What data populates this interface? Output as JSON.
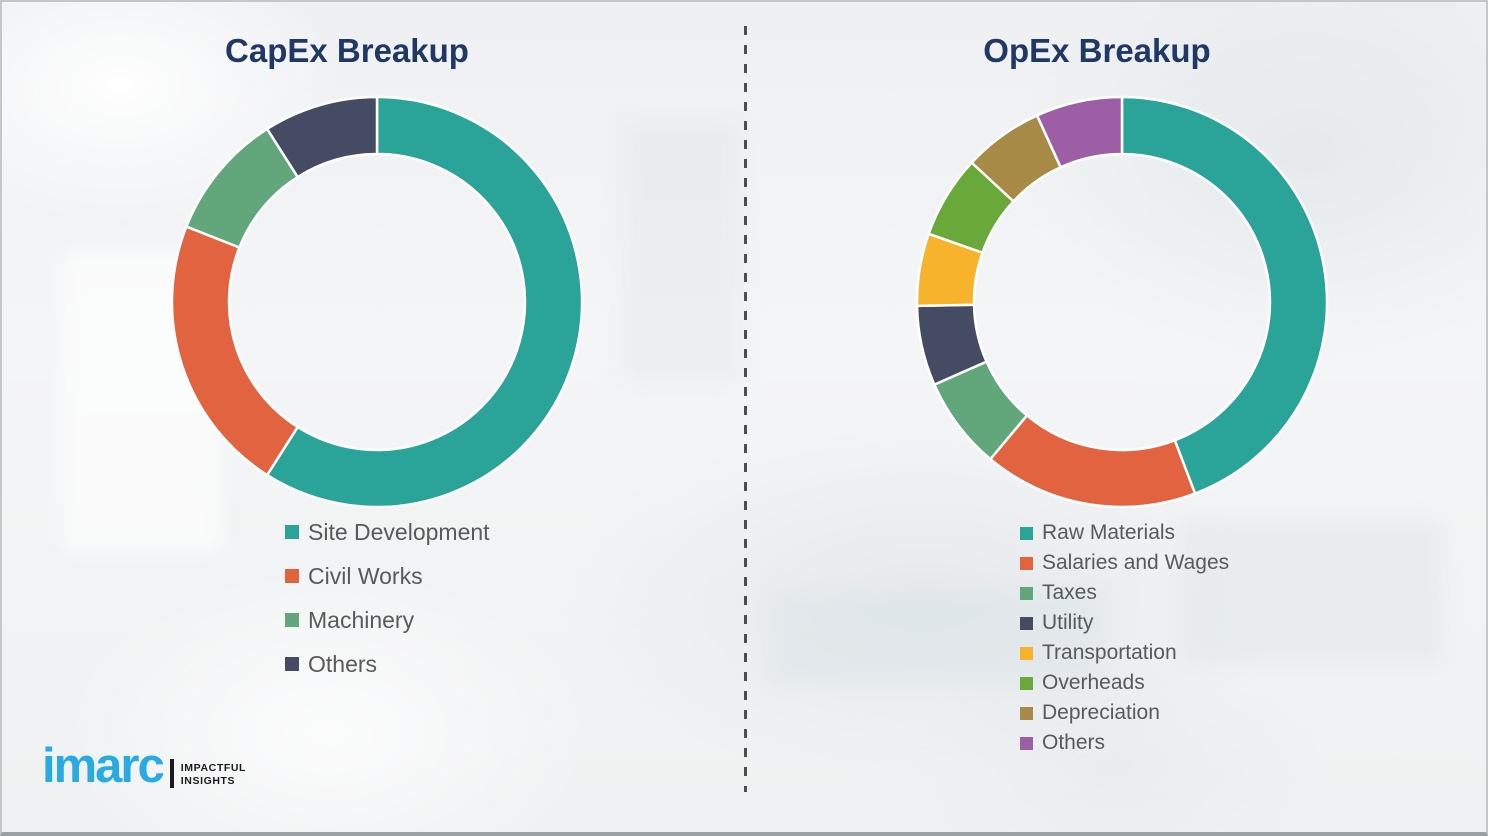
{
  "theme": {
    "title_color": "#1f3864",
    "legend_text_color": "#595959",
    "divider_color": "#4d4d4d",
    "background_color": "#f2f3f5",
    "segment_gap_color": "#ffffff"
  },
  "chart_data": [
    {
      "type": "pie",
      "subtype": "donut",
      "title": "CapEx Breakup",
      "labels": [
        "Site Development",
        "Civil Works",
        "Machinery",
        "Others"
      ],
      "values": [
        59,
        22,
        10,
        9
      ],
      "unit": "percent",
      "colors": [
        "#2aa398",
        "#e2633f",
        "#61a77b",
        "#454b63"
      ],
      "start_angle_deg": 0,
      "direction": "clockwise",
      "donut_hole_ratio": 0.72,
      "legend_position": "below-left",
      "data_labels_shown": false
    },
    {
      "type": "pie",
      "subtype": "donut",
      "title": "OpEx Breakup",
      "labels": [
        "Raw Materials",
        "Salaries and Wages",
        "Taxes",
        "Utility",
        "Transportation",
        "Overheads",
        "Depreciation",
        "Others"
      ],
      "values": [
        44.2,
        16.9,
        7.3,
        6.3,
        5.7,
        6.5,
        6.3,
        6.8
      ],
      "unit": "percent",
      "colors": [
        "#2aa398",
        "#e2633f",
        "#61a77b",
        "#454b63",
        "#f7b32b",
        "#68a93a",
        "#a68a46",
        "#9c5fa5"
      ],
      "start_angle_deg": 0,
      "direction": "clockwise",
      "donut_hole_ratio": 0.72,
      "legend_position": "below-left",
      "data_labels_shown": false
    }
  ],
  "logo": {
    "brand": "imarc",
    "brand_color": "#29abe2",
    "tagline_line1": "IMPACTFUL",
    "tagline_line2": "INSIGHTS"
  }
}
